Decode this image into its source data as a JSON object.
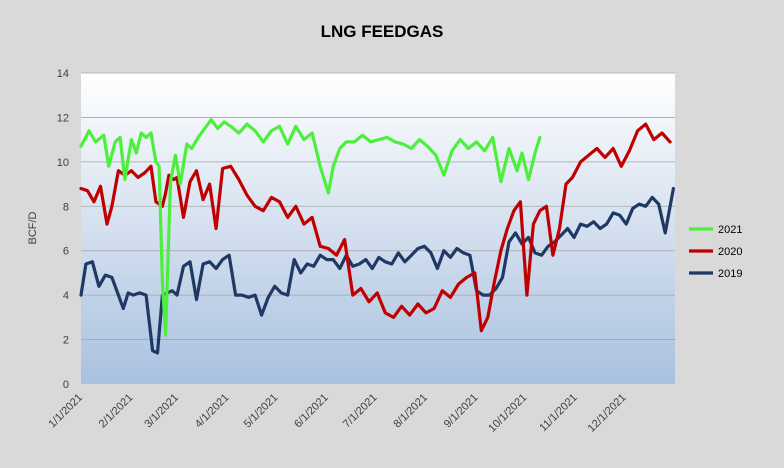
{
  "chart_data": {
    "type": "line",
    "title": "LNG FEEDGAS",
    "ylabel": "BCF/D",
    "xlabel": "",
    "ylim": [
      0,
      14
    ],
    "yticks": [
      0,
      2,
      4,
      6,
      8,
      10,
      12,
      14
    ],
    "x_tick_labels": [
      "1/1/2021",
      "2/1/2021",
      "3/1/2021",
      "4/1/2021",
      "5/1/2021",
      "6/1/2021",
      "7/1/2021",
      "8/1/2021",
      "9/1/2021",
      "10/1/2021",
      "11/1/2021",
      "12/1/2021"
    ],
    "grid": "horizontal",
    "legend_position": "right",
    "colors": {
      "2021": "#4cf03c",
      "2020": "#c00000",
      "2019": "#1f3864"
    },
    "series": [
      {
        "name": "2021",
        "x": [
          "1/1",
          "1/6",
          "1/10",
          "1/15",
          "1/18",
          "1/22",
          "1/25",
          "1/28",
          "2/1",
          "2/4",
          "2/7",
          "2/10",
          "2/13",
          "2/16",
          "2/18",
          "2/20",
          "2/22",
          "2/25",
          "2/28",
          "3/3",
          "3/7",
          "3/10",
          "3/14",
          "3/18",
          "3/22",
          "3/26",
          "3/30",
          "4/3",
          "4/8",
          "4/13",
          "4/18",
          "4/23",
          "4/28",
          "5/3",
          "5/8",
          "5/13",
          "5/18",
          "5/23",
          "5/28",
          "6/2",
          "6/5",
          "6/9",
          "6/13",
          "6/18",
          "6/23",
          "6/28",
          "7/3",
          "7/8",
          "7/13",
          "7/18",
          "7/23",
          "7/28",
          "8/2",
          "8/7",
          "8/12",
          "8/17",
          "8/22",
          "8/27",
          "9/1",
          "9/6",
          "9/11",
          "9/16",
          "9/21",
          "9/26",
          "9/29",
          "10/3",
          "10/7",
          "10/10"
        ],
        "y": [
          10.7,
          11.4,
          10.9,
          11.2,
          9.8,
          10.9,
          11.1,
          9.2,
          11.0,
          10.4,
          11.3,
          11.1,
          11.3,
          10.0,
          9.8,
          4.6,
          2.2,
          9.1,
          10.3,
          9.0,
          10.8,
          10.6,
          11.1,
          11.5,
          11.9,
          11.5,
          11.8,
          11.6,
          11.3,
          11.7,
          11.4,
          10.9,
          11.4,
          11.6,
          10.8,
          11.6,
          11.0,
          11.3,
          9.8,
          8.6,
          9.8,
          10.6,
          10.9,
          10.9,
          11.2,
          10.9,
          11.0,
          11.1,
          10.9,
          10.8,
          10.6,
          11.0,
          10.7,
          10.3,
          9.4,
          10.5,
          11.0,
          10.6,
          10.9,
          10.5,
          11.1,
          9.1,
          10.6,
          9.6,
          10.4,
          9.2,
          10.4,
          11.1
        ]
      },
      {
        "name": "2020",
        "x": [
          "1/1",
          "1/5",
          "1/9",
          "1/13",
          "1/17",
          "1/20",
          "1/24",
          "1/28",
          "2/1",
          "2/5",
          "2/9",
          "2/13",
          "2/16",
          "2/20",
          "2/22",
          "2/24",
          "2/27",
          "3/1",
          "3/5",
          "3/9",
          "3/13",
          "3/17",
          "3/21",
          "3/25",
          "3/29",
          "4/3",
          "4/8",
          "4/13",
          "4/18",
          "4/23",
          "4/28",
          "5/3",
          "5/8",
          "5/13",
          "5/18",
          "5/23",
          "5/28",
          "6/2",
          "6/7",
          "6/12",
          "6/17",
          "6/22",
          "6/27",
          "7/2",
          "7/7",
          "7/12",
          "7/17",
          "7/22",
          "7/27",
          "8/1",
          "8/6",
          "8/11",
          "8/16",
          "8/21",
          "8/26",
          "8/31",
          "9/4",
          "9/8",
          "9/12",
          "9/16",
          "9/20",
          "9/24",
          "9/28",
          "10/2",
          "10/6",
          "10/10",
          "10/14",
          "10/18",
          "10/22",
          "10/26",
          "10/30",
          "11/4",
          "11/9",
          "11/14",
          "11/19",
          "11/24",
          "11/29",
          "12/4",
          "12/9",
          "12/14",
          "12/19",
          "12/24",
          "12/29"
        ],
        "y": [
          8.8,
          8.7,
          8.2,
          8.9,
          7.2,
          8.0,
          9.6,
          9.4,
          9.6,
          9.3,
          9.5,
          9.8,
          8.2,
          8.0,
          8.6,
          9.4,
          9.2,
          9.3,
          7.5,
          9.1,
          9.6,
          8.3,
          9.0,
          7.0,
          9.7,
          9.8,
          9.2,
          8.5,
          8.0,
          7.8,
          8.4,
          8.2,
          7.5,
          8.0,
          7.2,
          7.5,
          6.2,
          6.1,
          5.8,
          6.5,
          4.0,
          4.3,
          3.7,
          4.1,
          3.2,
          3.0,
          3.5,
          3.1,
          3.6,
          3.2,
          3.4,
          4.2,
          3.9,
          4.5,
          4.8,
          5.0,
          2.4,
          3.0,
          4.6,
          6.0,
          7.0,
          7.8,
          8.2,
          4.0,
          7.2,
          7.8,
          8.0,
          5.8,
          7.0,
          9.0,
          9.3,
          10.0,
          10.3,
          10.6,
          10.2,
          10.6,
          9.8,
          10.5,
          11.4,
          11.7,
          11.0,
          11.3,
          10.9
        ]
      },
      {
        "name": "2019",
        "x": [
          "1/1",
          "1/4",
          "1/8",
          "1/12",
          "1/16",
          "1/20",
          "1/24",
          "1/27",
          "1/30",
          "2/2",
          "2/6",
          "2/10",
          "2/14",
          "2/17",
          "2/20",
          "2/23",
          "2/26",
          "3/1",
          "3/5",
          "3/9",
          "3/13",
          "3/17",
          "3/21",
          "3/25",
          "3/29",
          "4/2",
          "4/6",
          "4/10",
          "4/14",
          "4/18",
          "4/22",
          "4/26",
          "4/30",
          "5/4",
          "5/8",
          "5/12",
          "5/16",
          "5/20",
          "5/24",
          "5/28",
          "6/1",
          "6/5",
          "6/9",
          "6/13",
          "6/17",
          "6/21",
          "6/25",
          "6/29",
          "7/3",
          "7/7",
          "7/11",
          "7/15",
          "7/19",
          "7/23",
          "7/27",
          "7/31",
          "8/4",
          "8/8",
          "8/12",
          "8/16",
          "8/20",
          "8/24",
          "8/28",
          "9/1",
          "9/5",
          "9/9",
          "9/13",
          "9/17",
          "9/21",
          "9/25",
          "9/29",
          "10/3",
          "10/7",
          "10/11",
          "10/15",
          "10/19",
          "10/23",
          "10/27",
          "10/31",
          "11/4",
          "11/8",
          "11/12",
          "11/16",
          "11/20",
          "11/24",
          "11/28",
          "12/2",
          "12/6",
          "12/10",
          "12/14",
          "12/18",
          "12/22",
          "12/26",
          "12/31"
        ],
        "y": [
          4.0,
          5.4,
          5.5,
          4.4,
          4.9,
          4.8,
          4.0,
          3.4,
          4.1,
          4.0,
          4.1,
          4.0,
          1.5,
          1.4,
          4.0,
          4.1,
          4.2,
          4.0,
          5.3,
          5.5,
          3.8,
          5.4,
          5.5,
          5.2,
          5.6,
          5.8,
          4.0,
          4.0,
          3.9,
          4.0,
          3.1,
          3.9,
          4.4,
          4.1,
          4.0,
          5.6,
          5.0,
          5.4,
          5.3,
          5.8,
          5.6,
          5.6,
          5.2,
          5.8,
          5.3,
          5.4,
          5.6,
          5.2,
          5.7,
          5.5,
          5.4,
          5.9,
          5.5,
          5.8,
          6.1,
          6.2,
          5.9,
          5.2,
          6.0,
          5.7,
          6.1,
          5.9,
          5.8,
          4.2,
          4.0,
          4.0,
          4.3,
          4.8,
          6.4,
          6.8,
          6.3,
          6.6,
          5.9,
          5.8,
          6.2,
          6.4,
          6.7,
          7.0,
          6.6,
          7.2,
          7.1,
          7.3,
          7.0,
          7.2,
          7.7,
          7.6,
          7.2,
          7.9,
          8.1,
          8.0,
          8.4,
          8.1,
          6.8,
          8.8
        ]
      }
    ]
  }
}
